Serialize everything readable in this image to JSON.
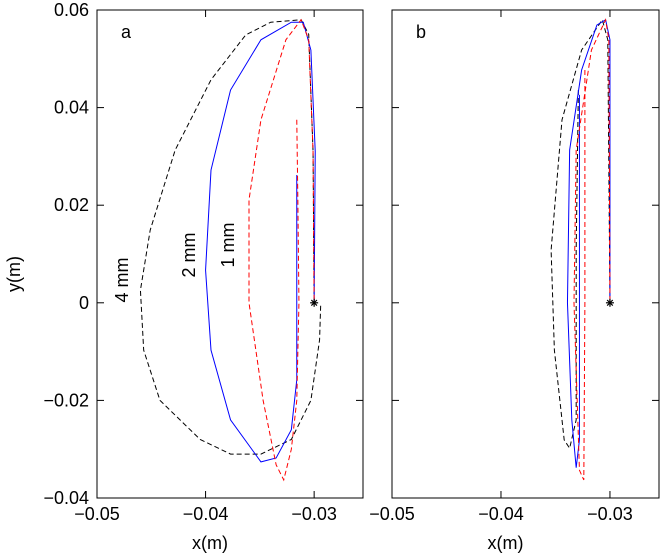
{
  "chart_data": [
    {
      "type": "line",
      "panel_label": "a",
      "xlabel": "x(m)",
      "ylabel": "y(m)",
      "xlim": [
        -0.05,
        -0.0255
      ],
      "ylim": [
        -0.04,
        0.06
      ],
      "xticks": [
        {
          "value": -0.05,
          "label": "−0.05"
        },
        {
          "value": -0.04,
          "label": "−0.04"
        },
        {
          "value": -0.03,
          "label": "−0.03"
        }
      ],
      "yticks": [
        {
          "value": -0.04,
          "label": "−0.04"
        },
        {
          "value": -0.02,
          "label": "−0.02"
        },
        0,
        0.02,
        0.04,
        0.06
      ],
      "annotations": [
        "4 mm",
        "2 mm",
        "1 mm"
      ],
      "start_point": {
        "x": -0.03,
        "y": 0
      },
      "series": [
        {
          "color": "#000000",
          "dash": true,
          "x": [
            -0.0294,
            -0.0295,
            -0.0303,
            -0.0321,
            -0.0349,
            -0.0377,
            -0.0405,
            -0.0442,
            -0.0457,
            -0.046,
            -0.0451,
            -0.0428,
            -0.0395,
            -0.0363,
            -0.034,
            -0.0312,
            -0.0305,
            -0.0301,
            -0.03
          ],
          "values": [
            -0.0006,
            -0.0076,
            -0.02,
            -0.028,
            -0.031,
            -0.031,
            -0.028,
            -0.02,
            -0.0097,
            0.0026,
            0.0149,
            0.0313,
            0.0457,
            0.0549,
            0.0575,
            0.058,
            0.055,
            0.031,
            0
          ]
        },
        {
          "color": "#0000ff",
          "dash": false,
          "x": [
            -0.03,
            -0.0299,
            -0.0303,
            -0.031,
            -0.0321,
            -0.0349,
            -0.0377,
            -0.0395,
            -0.04,
            -0.0395,
            -0.0377,
            -0.0349,
            -0.0335,
            -0.0321,
            -0.0316,
            -0.0316,
            -0.0316
          ],
          "values": [
            0,
            0.031,
            0.0518,
            0.0575,
            0.0575,
            0.0539,
            0.0436,
            0.0272,
            0.0067,
            -0.0097,
            -0.024,
            -0.0326,
            -0.0318,
            -0.026,
            -0.0158,
            0.0067,
            0.0262
          ]
        },
        {
          "color": "#ff0000",
          "dash": true,
          "x": [
            -0.0316,
            -0.0315,
            -0.0314,
            -0.0316,
            -0.0321,
            -0.0328,
            -0.0335,
            -0.0347,
            -0.036,
            -0.036,
            -0.0349,
            -0.0326,
            -0.0312,
            -0.0305,
            -0.0301,
            -0.03
          ],
          "values": [
            0.0375,
            0.021,
            0,
            -0.02,
            -0.03,
            -0.0363,
            -0.0332,
            -0.02,
            0,
            0.0211,
            0.0375,
            0.0539,
            0.058,
            0.0539,
            0.031,
            0
          ]
        }
      ]
    },
    {
      "type": "line",
      "panel_label": "b",
      "xlabel": "x(m)",
      "xlim": [
        -0.05,
        -0.0255
      ],
      "ylim": [
        -0.04,
        0.06
      ],
      "xticks": [
        {
          "value": -0.05,
          "label": "−0.05"
        },
        {
          "value": -0.04,
          "label": "−0.04"
        },
        {
          "value": -0.03,
          "label": "−0.03"
        }
      ],
      "yticks": [
        -0.04,
        -0.02,
        0,
        0.02,
        0.04,
        0.06
      ],
      "start_point": {
        "x": -0.03,
        "y": 0
      },
      "series": [
        {
          "color": "#000000",
          "dash": true,
          "x": [
            -0.0329,
            -0.0331,
            -0.0331,
            -0.0337,
            -0.0342,
            -0.0351,
            -0.0354,
            -0.0344,
            -0.0326,
            -0.0307,
            -0.0302,
            -0.03
          ],
          "values": [
            0.0436,
            0.0108,
            -0.024,
            -0.0298,
            -0.0281,
            -0.0097,
            0.0108,
            0.0375,
            0.0518,
            0.058,
            0.0539,
            0
          ]
        },
        {
          "color": "#0000ff",
          "dash": false,
          "x": [
            -0.03,
            -0.03,
            -0.0304,
            -0.0312,
            -0.0326,
            -0.0337,
            -0.0339,
            -0.0335,
            -0.0331,
            -0.0328,
            -0.0328,
            -0.0328
          ],
          "values": [
            0,
            0.0539,
            0.058,
            0.0569,
            0.0477,
            0.0313,
            0,
            -0.024,
            -0.0338,
            -0.0281,
            0.0108,
            0.0426
          ]
        },
        {
          "color": "#ff0000",
          "dash": true,
          "x": [
            -0.0323,
            -0.0323,
            -0.0324,
            -0.0328,
            -0.0333,
            -0.0331,
            -0.0317,
            -0.0304,
            -0.0301,
            -0.03
          ],
          "values": [
            0.0477,
            0,
            -0.0363,
            -0.0343,
            0,
            0.0313,
            0.0518,
            0.058,
            0.0539,
            0
          ]
        }
      ]
    }
  ]
}
